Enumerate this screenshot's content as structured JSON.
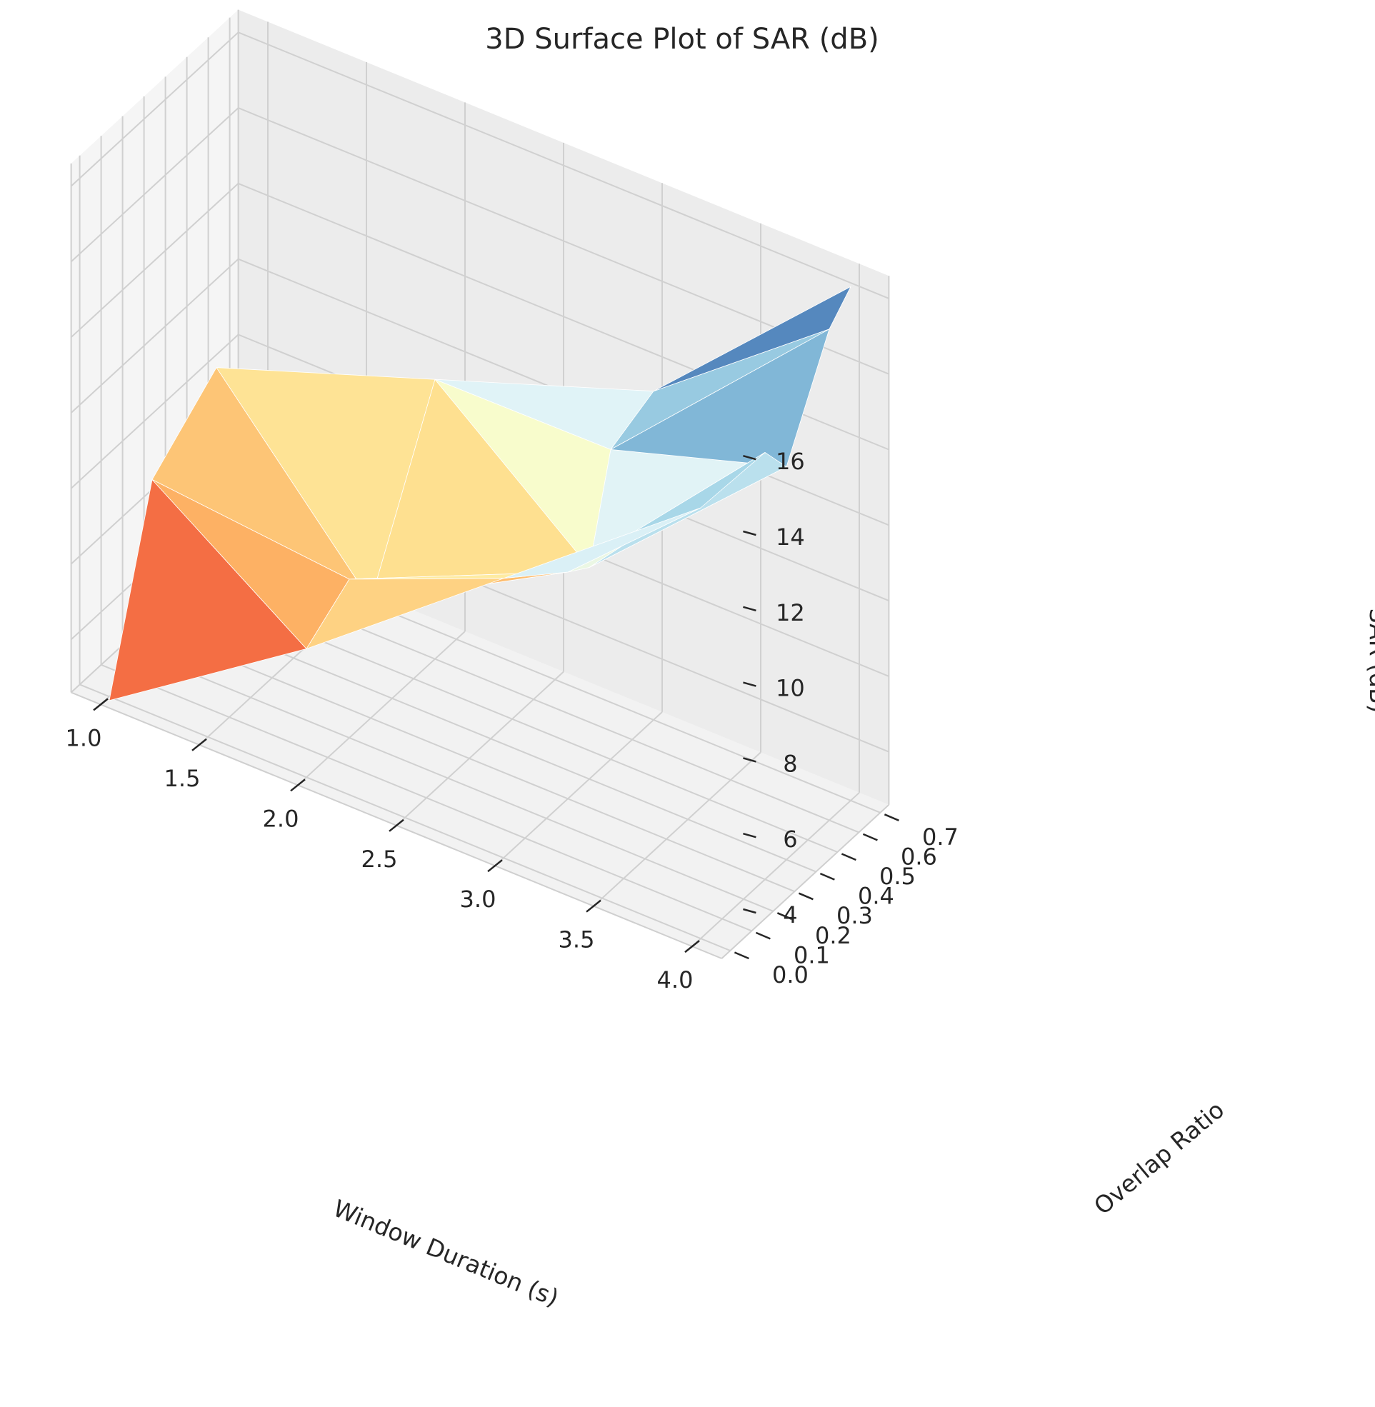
{
  "chart_data": {
    "type": "surface",
    "title": "3D Surface Plot of SAR (dB)",
    "xlabel": "Window Duration (s)",
    "ylabel": "Overlap Ratio",
    "zlabel": "SAR (dB)",
    "colormap": "RdYlBu",
    "x_ticks": [
      "1.0",
      "1.5",
      "2.0",
      "2.5",
      "3.0",
      "3.5",
      "4.0"
    ],
    "y_ticks": [
      "0.0",
      "0.1",
      "0.2",
      "0.3",
      "0.4",
      "0.5",
      "0.6",
      "0.7"
    ],
    "z_ticks": [
      "4",
      "6",
      "8",
      "10",
      "12",
      "14",
      "16"
    ],
    "xlim": [
      0.85,
      4.15
    ],
    "ylim": [
      -0.04,
      0.74
    ],
    "zlim": [
      2.6,
      16.6
    ],
    "grid": true,
    "points": [
      {
        "x": 1.0,
        "y": 0.0,
        "z": 2.5
      },
      {
        "x": 1.0,
        "y": 0.2,
        "z": 7.3
      },
      {
        "x": 1.0,
        "y": 0.5,
        "z": 8.7
      },
      {
        "x": 2.0,
        "y": 0.0,
        "z": 6.0
      },
      {
        "x": 2.0,
        "y": 0.2,
        "z": 6.8
      },
      {
        "x": 2.0,
        "y": 0.3,
        "z": 5.7
      },
      {
        "x": 2.0,
        "y": 0.6,
        "z": 10.0
      },
      {
        "x": 3.0,
        "y": 0.0,
        "z": 10.0
      },
      {
        "x": 3.0,
        "y": 0.3,
        "z": 8.6
      },
      {
        "x": 3.0,
        "y": 0.4,
        "z": 8.2
      },
      {
        "x": 3.0,
        "y": 0.5,
        "z": 10.8
      },
      {
        "x": 3.0,
        "y": 0.7,
        "z": 11.3
      },
      {
        "x": 4.0,
        "y": 0.0,
        "z": 14.0
      },
      {
        "x": 4.0,
        "y": 0.3,
        "z": 13.9
      },
      {
        "x": 4.0,
        "y": 0.4,
        "z": 13.0
      },
      {
        "x": 4.0,
        "y": 0.6,
        "z": 15.6
      },
      {
        "x": 4.0,
        "y": 0.7,
        "z": 16.2
      }
    ]
  }
}
